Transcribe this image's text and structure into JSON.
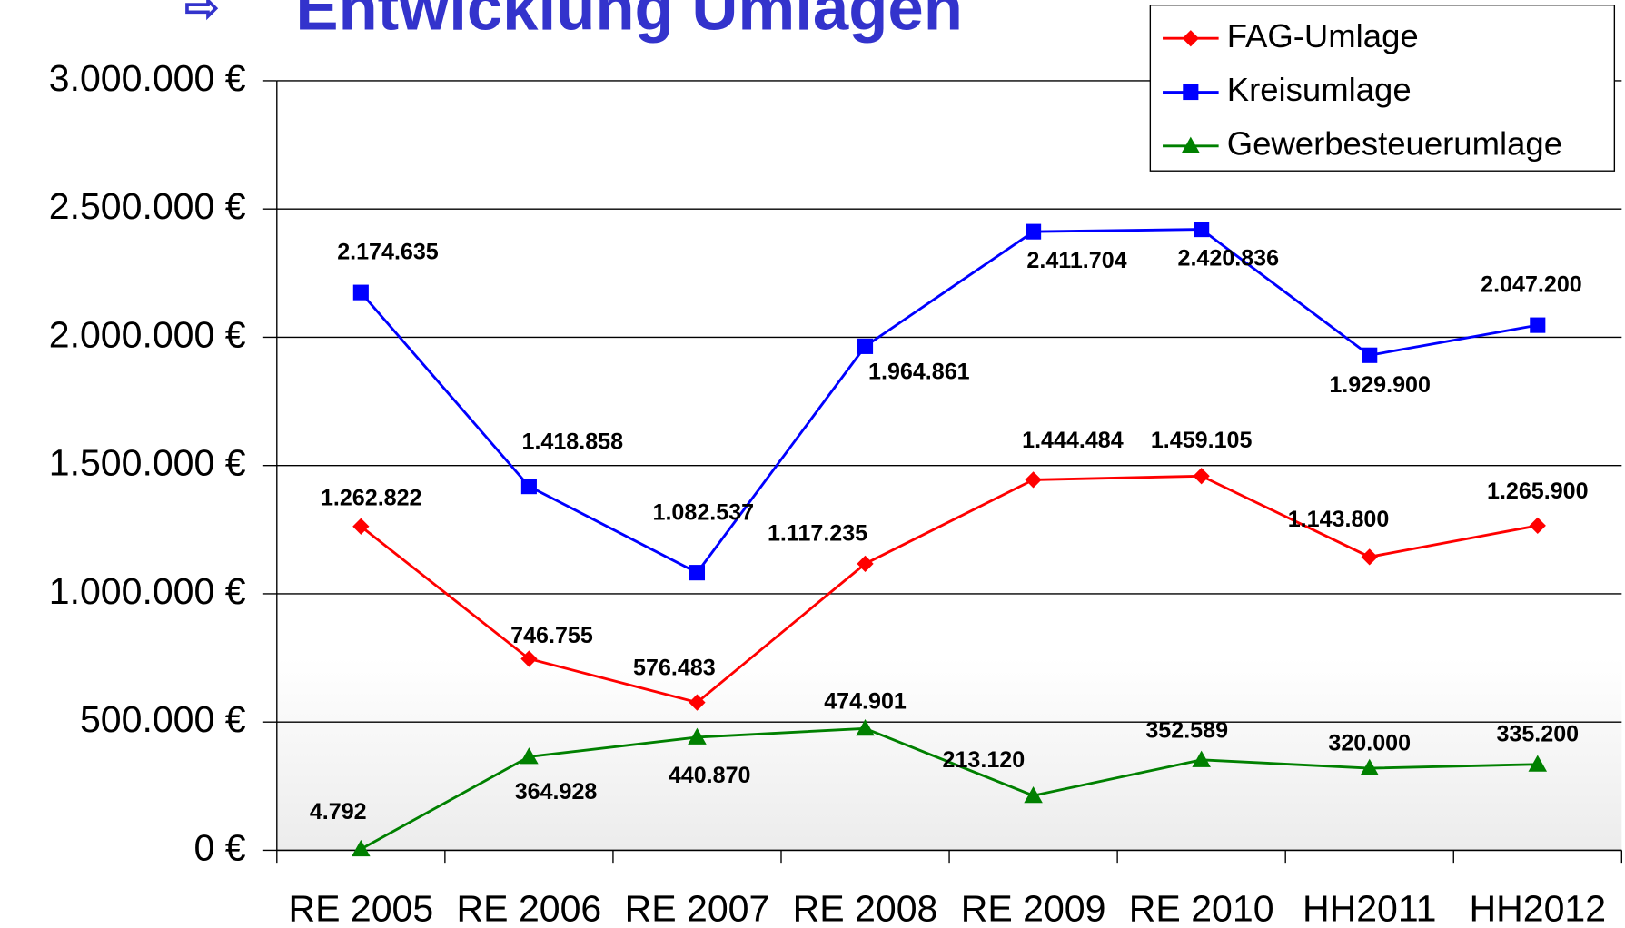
{
  "chart_data": {
    "type": "line",
    "title_marker": "⇨",
    "title": "Entwicklung Umlagen",
    "categories": [
      "RE 2005",
      "RE 2006",
      "RE 2007",
      "RE 2008",
      "RE 2009",
      "RE 2010",
      "HH2011",
      "HH2012"
    ],
    "series": [
      {
        "name": "FAG-Umlage",
        "color": "#ff0000",
        "marker": "diamond",
        "values": [
          1262822,
          746755,
          576483,
          1117235,
          1444484,
          1459105,
          1143800,
          1265900
        ],
        "value_labels": [
          "1.262.822",
          "746.755",
          "576.483",
          "1.117.235",
          "1.444.484",
          "1.459.105",
          "1.143.800",
          "1.265.900"
        ]
      },
      {
        "name": "Kreisumlage",
        "color": "#0000ff",
        "marker": "square",
        "values": [
          2174635,
          1418858,
          1082537,
          1964861,
          2411704,
          2420836,
          1929900,
          2047200
        ],
        "value_labels": [
          "2.174.635",
          "1.418.858",
          "1.082.537",
          "1.964.861",
          "2.411.704",
          "2.420.836",
          "1.929.900",
          "2.047.200"
        ]
      },
      {
        "name": "Gewerbesteuerumlage",
        "color": "#008000",
        "marker": "triangle",
        "values": [
          4792,
          364928,
          440870,
          474901,
          213120,
          352589,
          320000,
          335200
        ],
        "value_labels": [
          "4.792",
          "364.928",
          "440.870",
          "474.901",
          "213.120",
          "352.589",
          "320.000",
          "335.200"
        ]
      }
    ],
    "ylim": [
      0,
      3000000
    ],
    "yticks": [
      {
        "value": 0,
        "label": "0 €"
      },
      {
        "value": 500000,
        "label": "500.000 €"
      },
      {
        "value": 1000000,
        "label": "1.000.000 €"
      },
      {
        "value": 1500000,
        "label": "1.500.000 €"
      },
      {
        "value": 2000000,
        "label": "2.000.000 €"
      },
      {
        "value": 2500000,
        "label": "2.500.000 €"
      },
      {
        "value": 3000000,
        "label": "3.000.000 €"
      }
    ],
    "grid": true,
    "legend": "top-right"
  }
}
